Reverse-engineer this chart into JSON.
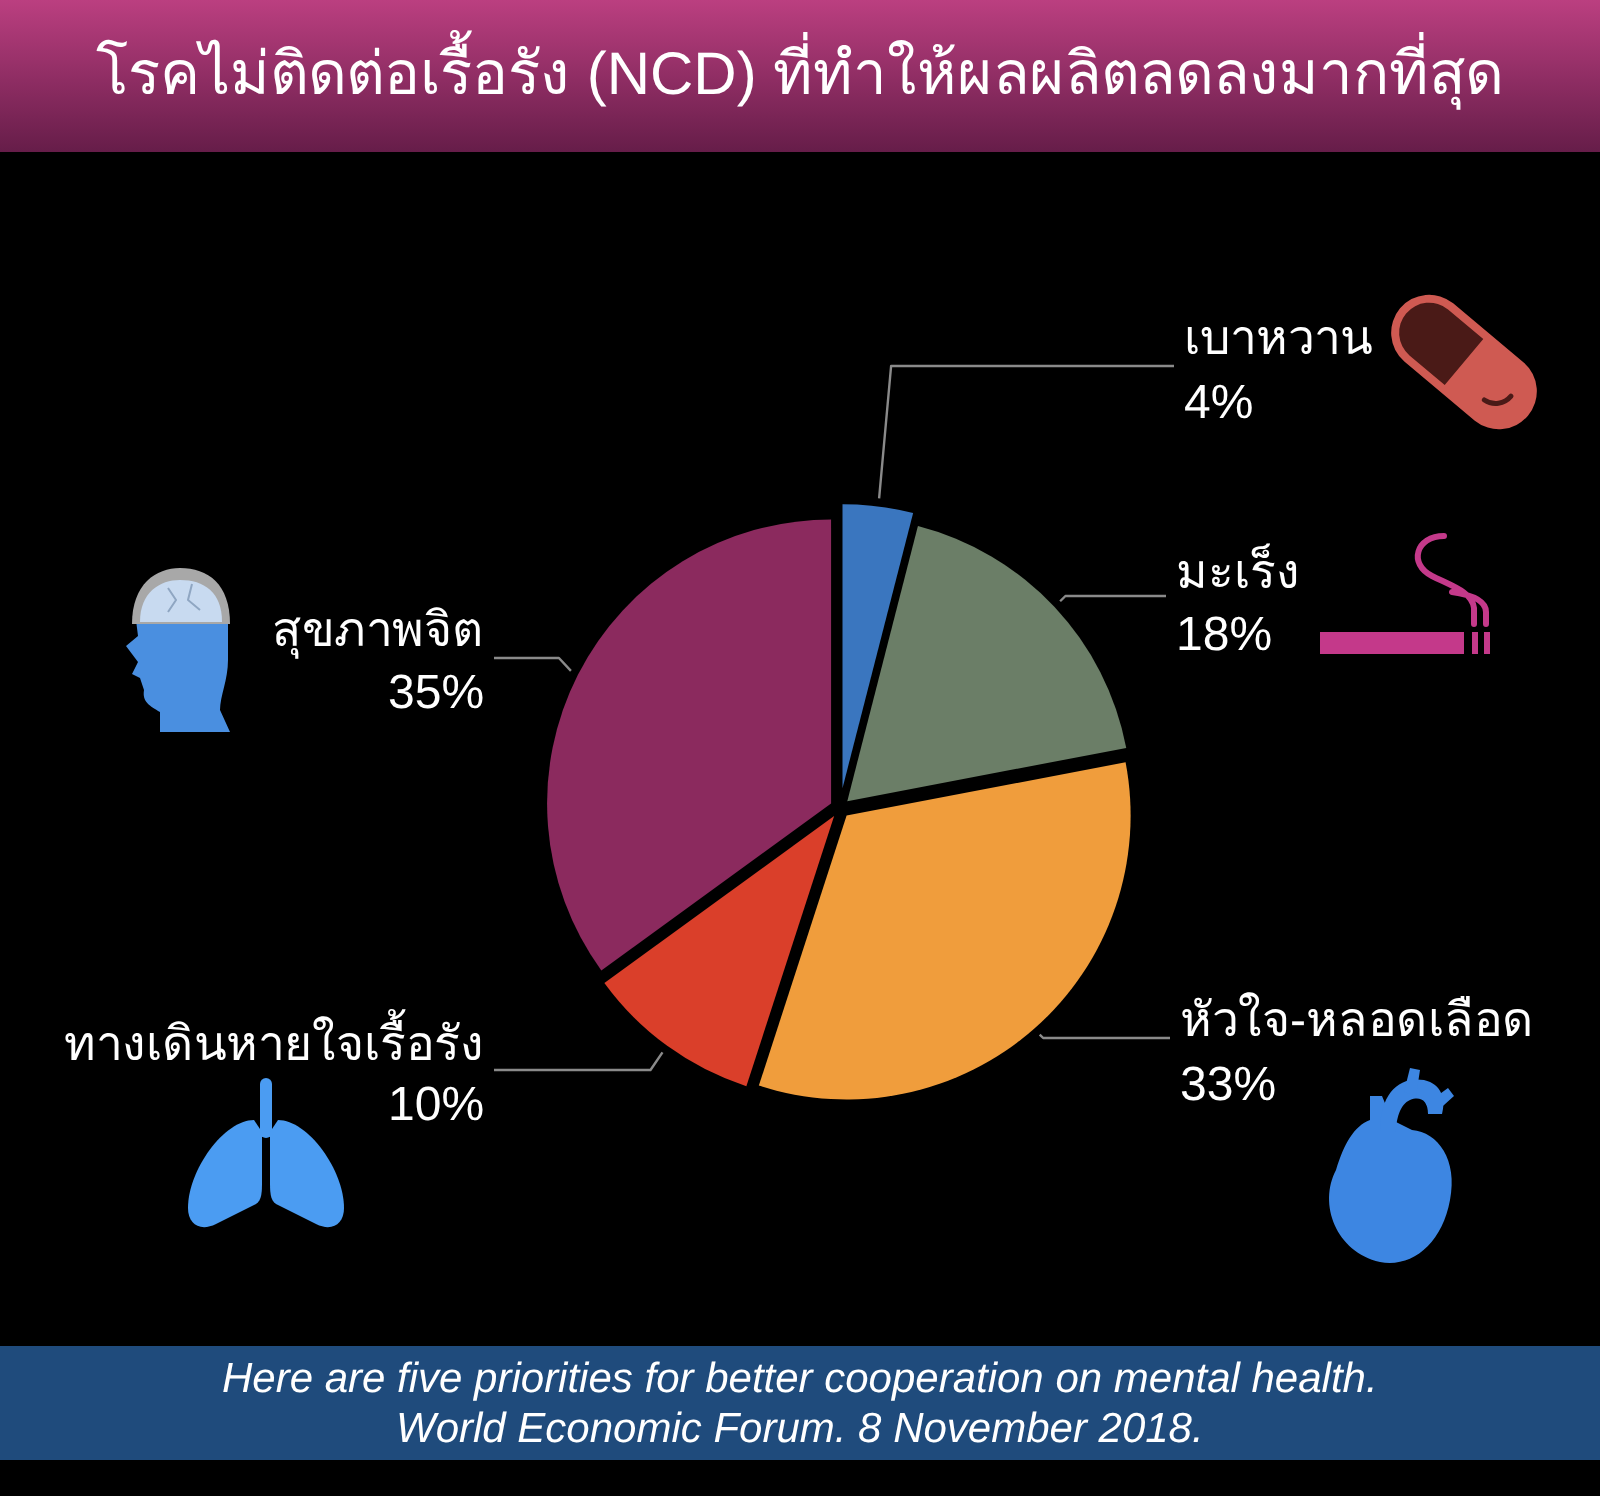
{
  "chart_data": {
    "type": "pie",
    "title": "โรคไม่ติดต่อเรื้อรัง (NCD) ที่ทำให้ผลผลิตลดลงมากที่สุด",
    "categories": [
      "เบาหวาน",
      "มะเร็ง",
      "หัวใจ-หลอดเลือด",
      "ทางเดินหายใจเรื้อรัง",
      "สุขภาพจิต"
    ],
    "values": [
      4,
      18,
      33,
      10,
      35
    ],
    "colors": [
      "#3a76bf",
      "#6b7e67",
      "#f09d3c",
      "#da3f2a",
      "#8b2a5e"
    ],
    "value_labels": [
      "4%",
      "18%",
      "33%",
      "10%",
      "35%"
    ],
    "annotations": [
      "Here are five priorities for better cooperation on mental health.",
      "World Economic Forum. 8 November 2018."
    ]
  }
}
